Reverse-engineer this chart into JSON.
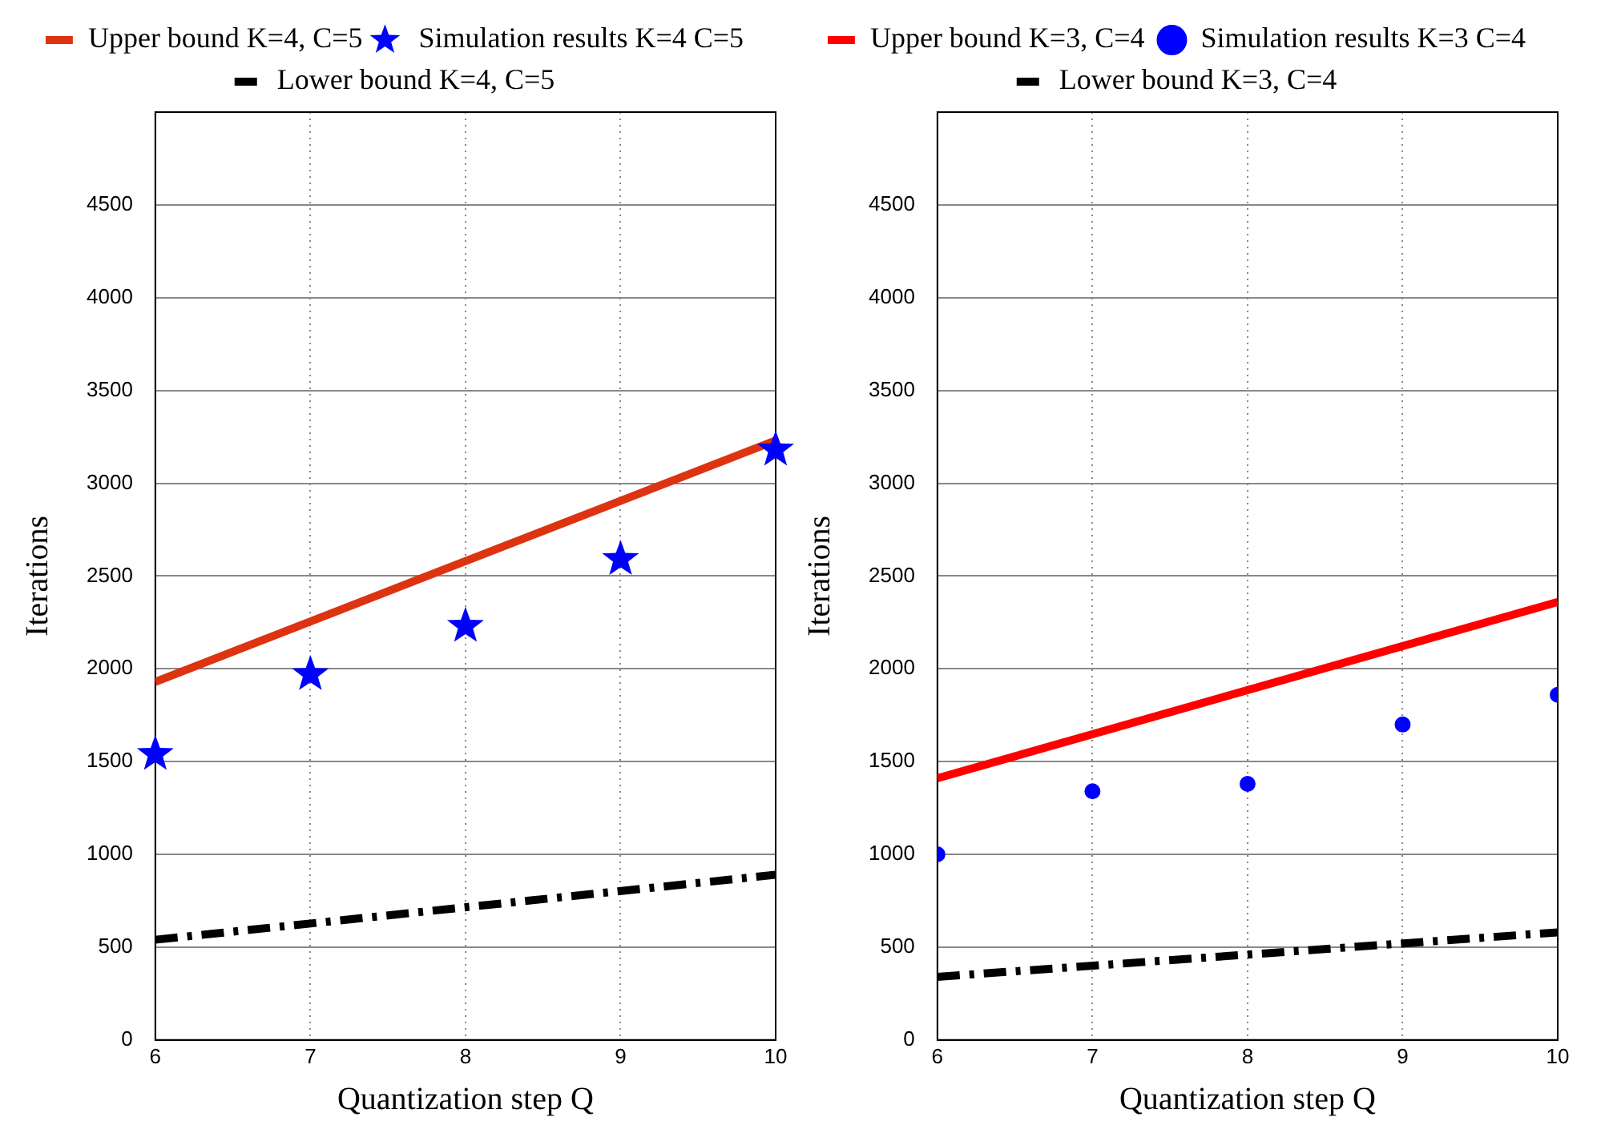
{
  "chart_data": [
    {
      "type": "scatter",
      "xlabel": "Quantization step Q",
      "ylabel": "Iterations",
      "xlim": [
        6,
        10
      ],
      "xticks": [
        6,
        7,
        8,
        9,
        10
      ],
      "ylim": [
        0,
        5000
      ],
      "yticks": [
        0,
        500,
        1000,
        1500,
        2000,
        2500,
        3000,
        3500,
        4000,
        4500
      ],
      "grid": true,
      "legend": "top",
      "series": [
        {
          "name": "Upper bound K=4, C=5",
          "type": "line",
          "color": "#dd3311",
          "x": [
            6,
            10
          ],
          "values": [
            1930,
            3230
          ],
          "marker": "none",
          "line_style": "solid"
        },
        {
          "name": "Simulation results K=4 C=5",
          "type": "scatter",
          "color": "#0000ff",
          "x": [
            6,
            7,
            8,
            9,
            10
          ],
          "values": [
            1540,
            1970,
            2230,
            2590,
            3180
          ],
          "marker": "star"
        },
        {
          "name": "Lower bound K=4, C=5",
          "type": "line",
          "color": "#000000",
          "x": [
            6,
            10
          ],
          "values": [
            540,
            890
          ],
          "marker": "none",
          "line_style": "dashed"
        }
      ]
    },
    {
      "type": "scatter",
      "xlabel": "Quantization step Q",
      "ylabel": "Iterations",
      "xlim": [
        6,
        10
      ],
      "xticks": [
        6,
        7,
        8,
        9,
        10
      ],
      "ylim": [
        0,
        5000
      ],
      "yticks": [
        0,
        500,
        1000,
        1500,
        2000,
        2500,
        3000,
        3500,
        4000,
        4500
      ],
      "grid": true,
      "legend": "top",
      "series": [
        {
          "name": "Upper bound K=3, C=4",
          "type": "line",
          "color": "#ff0000",
          "x": [
            6,
            10
          ],
          "values": [
            1410,
            2360
          ],
          "marker": "none",
          "line_style": "solid"
        },
        {
          "name": "Simulation results K=3 C=4",
          "type": "scatter",
          "color": "#0000ff",
          "x": [
            6,
            7,
            8,
            9,
            10
          ],
          "values": [
            1000,
            1340,
            1380,
            1700,
            1860
          ],
          "marker": "circle"
        },
        {
          "name": "Lower bound K=3, C=4",
          "type": "line",
          "color": "#000000",
          "x": [
            6,
            10
          ],
          "values": [
            340,
            580
          ],
          "marker": "none",
          "line_style": "dashed"
        }
      ]
    }
  ]
}
